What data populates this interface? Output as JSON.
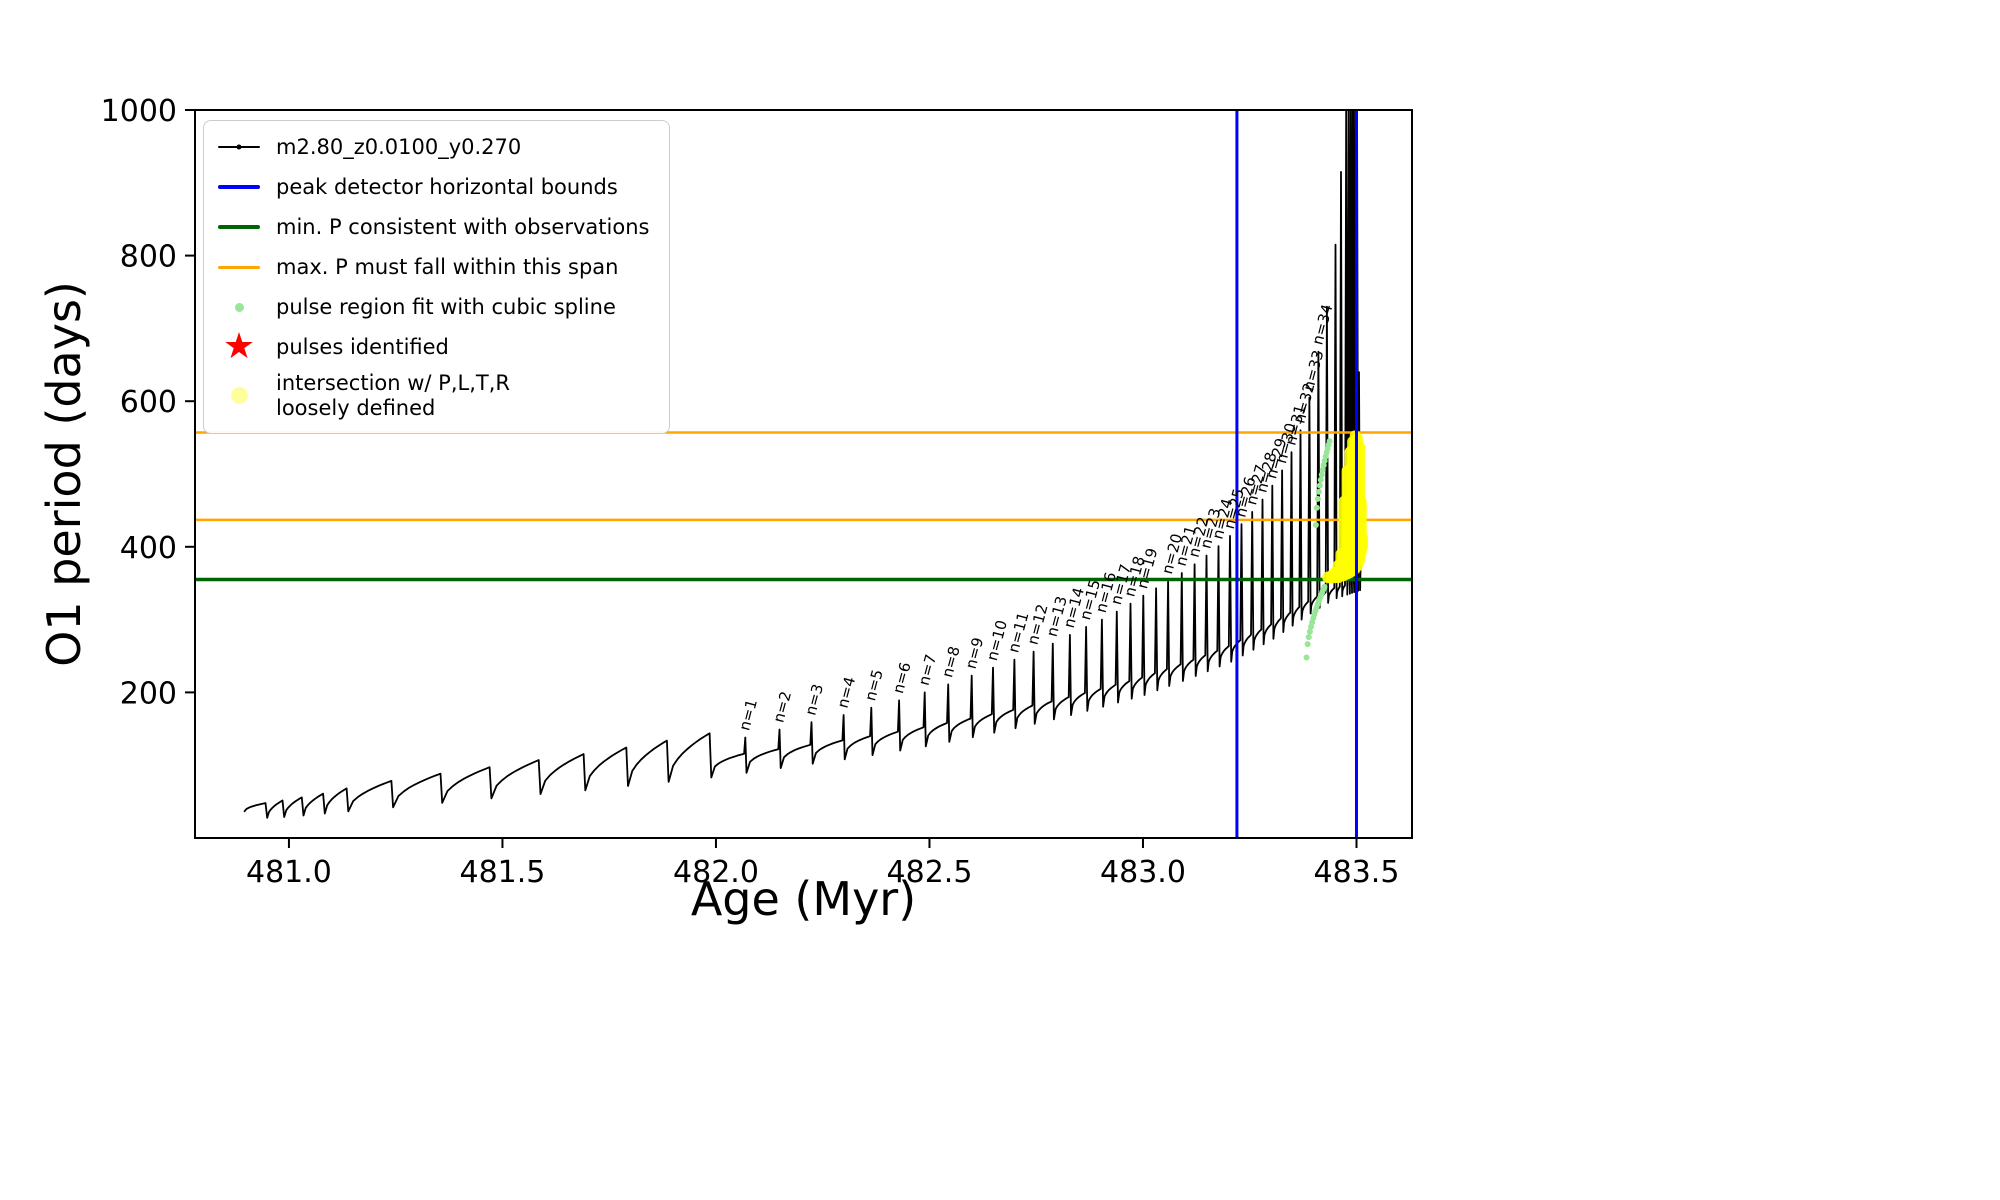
{
  "chart_data": {
    "type": "line",
    "title": "",
    "xlabel": "Age (Myr)",
    "ylabel": "O1 period (days)",
    "xlim": [
      480.78,
      483.63
    ],
    "ylim": [
      0,
      1000
    ],
    "grid": false,
    "legend_position": "upper left",
    "series_label": "m2.80_z0.0100_y0.270",
    "pulse_label_prefix": "n=",
    "xticks": [
      {
        "v": 481.0,
        "label": "481.0"
      },
      {
        "v": 481.5,
        "label": "481.5"
      },
      {
        "v": 482.0,
        "label": "482.0"
      },
      {
        "v": 482.5,
        "label": "482.5"
      },
      {
        "v": 483.0,
        "label": "483.0"
      },
      {
        "v": 483.5,
        "label": "483.5"
      }
    ],
    "yticks": [
      {
        "v": 200,
        "label": "200"
      },
      {
        "v": 400,
        "label": "400"
      },
      {
        "v": 600,
        "label": "600"
      },
      {
        "v": 800,
        "label": "800"
      },
      {
        "v": 1000,
        "label": "1000"
      }
    ],
    "colors": {
      "curve": "#000000",
      "bounds": "#0000ff",
      "min_period": "#006400",
      "max_period": "#ffa500",
      "spline": "#98e698",
      "pulses": "#ff0000",
      "intersection": "#ffff00"
    },
    "peak_detector_bounds_x": [
      483.22,
      483.5
    ],
    "min_period_consistent_y": 355,
    "max_period_span_y": [
      437,
      557
    ],
    "curve_start": {
      "x": 480.895,
      "y": 36
    },
    "curve_end": {
      "x": 483.514,
      "y": 406
    },
    "baseline_keyframes": [
      [
        480.89,
        38
      ],
      [
        481.0,
        42
      ],
      [
        481.1,
        48
      ],
      [
        481.2,
        54
      ],
      [
        481.3,
        60
      ],
      [
        481.4,
        66
      ],
      [
        481.5,
        72
      ],
      [
        481.6,
        79
      ],
      [
        481.7,
        86
      ],
      [
        481.8,
        94
      ],
      [
        481.9,
        102
      ],
      [
        482.0,
        110
      ],
      [
        482.1,
        118
      ],
      [
        482.2,
        126
      ],
      [
        482.3,
        134
      ],
      [
        482.4,
        143
      ],
      [
        482.5,
        153
      ],
      [
        482.6,
        164
      ],
      [
        482.7,
        176
      ],
      [
        482.8,
        189
      ],
      [
        482.9,
        204
      ],
      [
        483.0,
        220
      ],
      [
        483.1,
        240
      ],
      [
        483.2,
        262
      ],
      [
        483.3,
        292
      ],
      [
        483.35,
        310
      ],
      [
        483.4,
        328
      ],
      [
        483.45,
        343
      ],
      [
        483.52,
        353
      ]
    ],
    "trough_offset_keyframes": [
      [
        480.9,
        12
      ],
      [
        481.5,
        16
      ],
      [
        482.0,
        26
      ],
      [
        482.5,
        26
      ],
      [
        483.0,
        24
      ],
      [
        483.3,
        20
      ],
      [
        483.45,
        14
      ],
      [
        483.52,
        10
      ]
    ],
    "teeth": [
      [
        480.945,
        8
      ],
      [
        480.985,
        10
      ],
      [
        481.03,
        12
      ],
      [
        481.08,
        14
      ],
      [
        481.135,
        18
      ],
      [
        481.24,
        22
      ],
      [
        481.355,
        25
      ],
      [
        481.47,
        27
      ],
      [
        481.585,
        29
      ],
      [
        481.69,
        30
      ],
      [
        481.79,
        31
      ],
      [
        481.885,
        33
      ],
      [
        481.985,
        35
      ]
    ],
    "pulses": [
      {
        "n": 1,
        "x": 482.07,
        "peak": 138
      },
      {
        "n": 2,
        "x": 482.15,
        "peak": 149
      },
      {
        "n": 3,
        "x": 482.225,
        "peak": 159
      },
      {
        "n": 4,
        "x": 482.3,
        "peak": 169
      },
      {
        "n": 5,
        "x": 482.365,
        "peak": 179
      },
      {
        "n": 6,
        "x": 482.43,
        "peak": 189
      },
      {
        "n": 7,
        "x": 482.49,
        "peak": 200
      },
      {
        "n": 8,
        "x": 482.545,
        "peak": 211
      },
      {
        "n": 9,
        "x": 482.6,
        "peak": 223
      },
      {
        "n": 10,
        "x": 482.65,
        "peak": 234
      },
      {
        "n": 11,
        "x": 482.7,
        "peak": 245
      },
      {
        "n": 12,
        "x": 482.745,
        "peak": 256
      },
      {
        "n": 13,
        "x": 482.79,
        "peak": 267
      },
      {
        "n": 14,
        "x": 482.83,
        "peak": 279
      },
      {
        "n": 15,
        "x": 482.868,
        "peak": 290
      },
      {
        "n": 16,
        "x": 482.905,
        "peak": 300
      },
      {
        "n": 17,
        "x": 482.94,
        "peak": 311
      },
      {
        "n": 18,
        "x": 482.972,
        "peak": 322
      },
      {
        "n": 19,
        "x": 483.002,
        "peak": 333
      },
      {
        "n": null,
        "x": 483.032,
        "peak": 343
      },
      {
        "n": 20,
        "x": 483.06,
        "peak": 353
      },
      {
        "n": 21,
        "x": 483.092,
        "peak": 364
      },
      {
        "n": 22,
        "x": 483.122,
        "peak": 376
      },
      {
        "n": 23,
        "x": 483.15,
        "peak": 388
      },
      {
        "n": 24,
        "x": 483.178,
        "peak": 401
      },
      {
        "n": 25,
        "x": 483.205,
        "peak": 415
      },
      {
        "n": 26,
        "x": 483.232,
        "peak": 431
      },
      {
        "n": 27,
        "x": 483.257,
        "peak": 448
      },
      {
        "n": 28,
        "x": 483.281,
        "peak": 465
      },
      {
        "n": 29,
        "x": 483.304,
        "peak": 484
      },
      {
        "n": 30,
        "x": 483.327,
        "peak": 505
      },
      {
        "n": 31,
        "x": 483.349,
        "peak": 530
      },
      {
        "n": 32,
        "x": 483.37,
        "peak": 560
      },
      {
        "n": 33,
        "x": 483.391,
        "peak": 605
      },
      {
        "n": 34,
        "x": 483.412,
        "peak": 668
      }
    ],
    "end_spikes": [
      [
        483.432,
        730
      ],
      [
        483.452,
        815
      ],
      [
        483.465,
        915
      ],
      [
        483.477,
        1020
      ],
      [
        483.483,
        1060
      ],
      [
        483.488,
        1060
      ],
      [
        483.493,
        1060
      ],
      [
        483.498,
        1060
      ],
      [
        483.5025,
        1030
      ],
      [
        483.507,
        640
      ]
    ],
    "spline_segments": [
      {
        "x0": 483.383,
        "y0": 248,
        "x1": 483.425,
        "y1": 345,
        "n": 16
      },
      {
        "x0": 483.405,
        "y0": 430,
        "x1": 483.437,
        "y1": 545,
        "n": 14
      }
    ],
    "intersection_columns": [
      [
        483.433,
        350,
        366
      ],
      [
        483.441,
        350,
        368
      ],
      [
        483.449,
        350,
        372
      ],
      [
        483.457,
        350,
        382
      ],
      [
        483.464,
        352,
        398
      ],
      [
        483.471,
        353,
        470
      ],
      [
        483.478,
        355,
        512
      ],
      [
        483.485,
        357,
        538
      ],
      [
        483.491,
        359,
        552
      ],
      [
        483.497,
        362,
        560
      ],
      [
        483.502,
        366,
        557
      ],
      [
        483.507,
        374,
        545
      ],
      [
        483.511,
        385,
        470
      ],
      [
        483.514,
        392,
        420
      ]
    ]
  },
  "legend": {
    "entries": [
      {
        "type": "line+dot",
        "color": "#000000",
        "lw": 2,
        "label": "m2.80_z0.0100_y0.270"
      },
      {
        "type": "line",
        "color": "#0000ff",
        "lw": 4,
        "label": "peak detector horizontal bounds"
      },
      {
        "type": "line",
        "color": "#006400",
        "lw": 4,
        "label": "min. P consistent with observations"
      },
      {
        "type": "line",
        "color": "#ffa500",
        "lw": 3,
        "label": "max. P must fall within this span"
      },
      {
        "type": "dot",
        "color": "#98e698",
        "size": 9,
        "label": "pulse region fit with cubic spline"
      },
      {
        "type": "star",
        "color": "#ff0000",
        "size": 36,
        "label": "pulses identified"
      },
      {
        "type": "dot",
        "color": "#ffff99",
        "size": 17,
        "label": "intersection w/ P,L,T,R\nloosely defined"
      }
    ]
  }
}
